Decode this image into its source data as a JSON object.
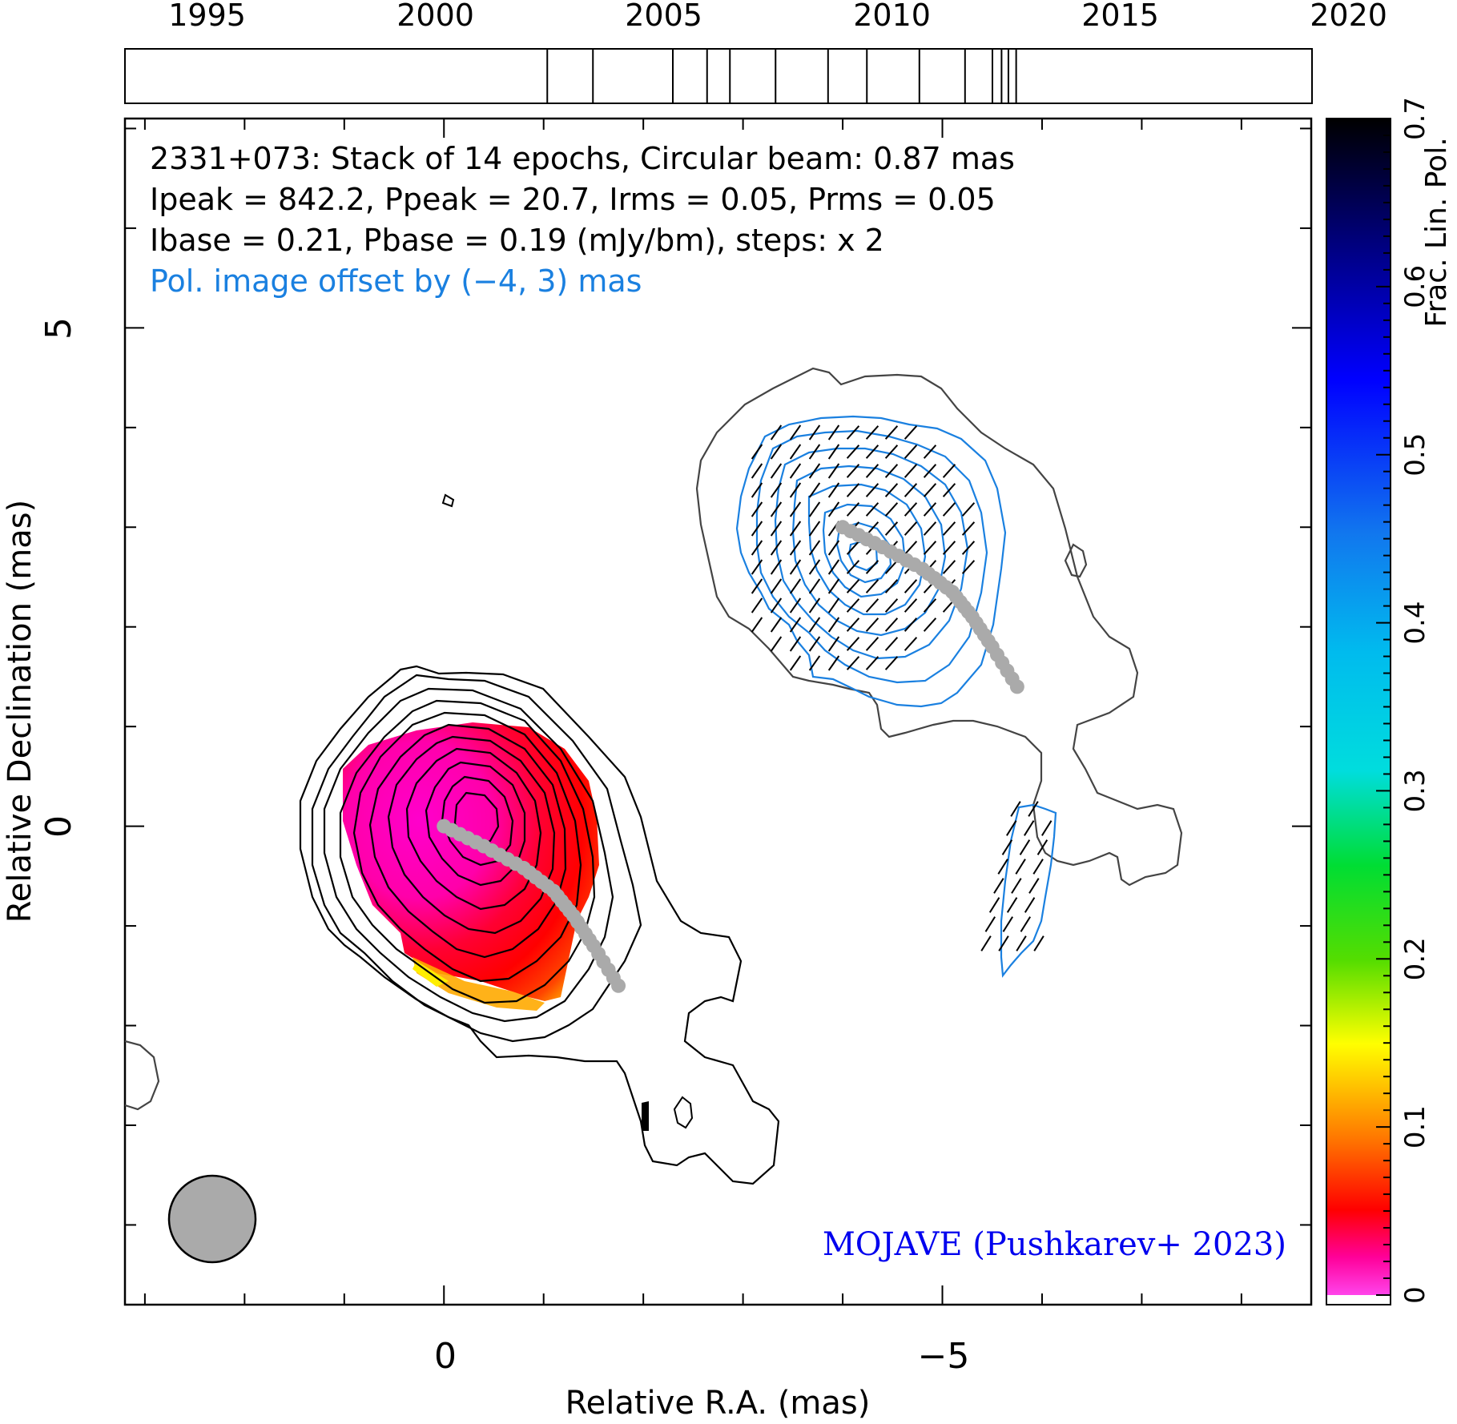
{
  "chart_data": {
    "type": "heatmap",
    "info_lines": [
      "2331+073: Stack of 14 epochs, Circular beam: 0.87 mas",
      "Ipeak = 842.2, Ppeak = 20.7, Irms = 0.05, Prms = 0.05",
      "Ibase = 0.21, Pbase = 0.19 (mJy/bm), steps: x 2"
    ],
    "pol_offset_text": "Pol. image offset by (−4, 3) mas",
    "credit": "MOJAVE (Pushkarev+ 2023)",
    "xlabel": "Relative R.A. (mas)",
    "ylabel": "Relative Declination (mas)",
    "xlim": [
      3.2,
      -8.7
    ],
    "ylim": [
      -4.8,
      7.1
    ],
    "x_ticks": [
      {
        "value": 0,
        "label": "0"
      },
      {
        "value": -5,
        "label": "−5"
      }
    ],
    "y_ticks": [
      {
        "value": 5,
        "label": "5"
      },
      {
        "value": 0,
        "label": "0"
      }
    ],
    "timeline": {
      "xlim": [
        1993.2,
        2019.2
      ],
      "tick_labels": [
        {
          "value": 1995,
          "label": "1995"
        },
        {
          "value": 2000,
          "label": "2000"
        },
        {
          "value": 2005,
          "label": "2005"
        },
        {
          "value": 2010,
          "label": "2010"
        },
        {
          "value": 2015,
          "label": "2015"
        },
        {
          "value": 2020,
          "label": "2020"
        }
      ],
      "epochs": [
        2002.45,
        2003.45,
        2005.2,
        2005.95,
        2006.45,
        2007.45,
        2008.6,
        2009.45,
        2010.6,
        2011.6,
        2012.2,
        2012.4,
        2012.55,
        2012.72
      ]
    },
    "colorbar": {
      "label": "Frac. Lin. Pol.",
      "range": [
        0,
        0.7
      ],
      "ticks": [
        "0",
        "0.1",
        "0.2",
        "0.3",
        "0.4",
        "0.5",
        "0.6",
        "0.7"
      ]
    },
    "beam_fwhm_mas": 0.87,
    "ridgeline": {
      "x": [
        0.0,
        -0.4,
        -0.8,
        -1.1,
        -1.3,
        -1.5,
        -1.75
      ],
      "y": [
        0.0,
        -0.2,
        -0.42,
        -0.65,
        -0.9,
        -1.2,
        -1.6
      ]
    },
    "pol_ridgeline": {
      "x": [
        -4.0,
        -4.4,
        -4.8,
        -5.1,
        -5.3,
        -5.5,
        -5.75
      ],
      "y": [
        3.0,
        2.8,
        2.58,
        2.35,
        2.1,
        1.8,
        1.4
      ]
    }
  },
  "colors": {
    "stokes_i_contours": "#000000",
    "pol_contours": "#1a80e0",
    "ridgeline": "#aaaaaa",
    "beam": "#aaaaaa",
    "offset_text": "#1a80e0",
    "credit_text": "#0000ee"
  }
}
